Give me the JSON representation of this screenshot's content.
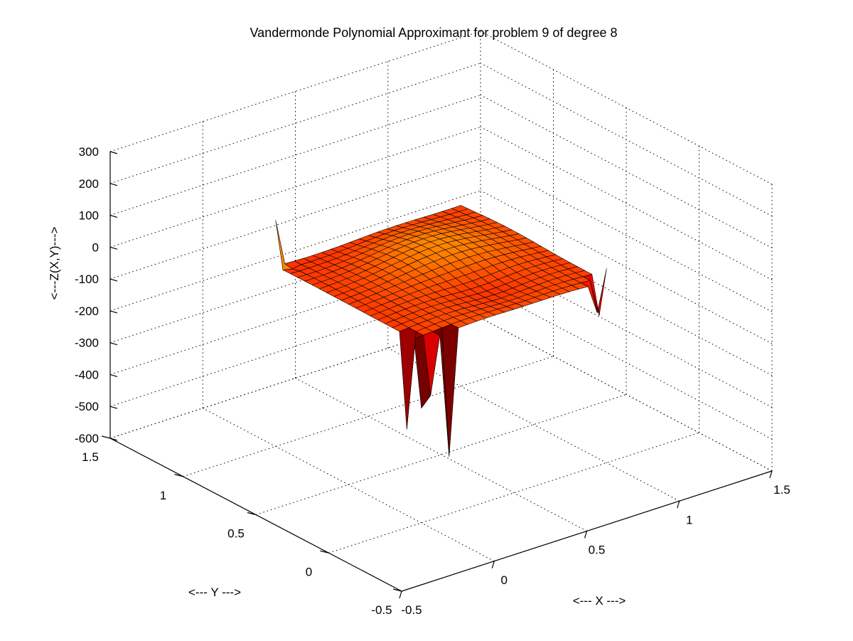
{
  "chart_data": {
    "type": "surface",
    "title": "Vandermonde Polynomial Approximant for problem 9 of degree 8",
    "xlabel": "<--- X --->",
    "ylabel": "<--- Y --->",
    "zlabel": "<---Z(X,Y)--->",
    "xlim": [
      -0.5,
      1.5
    ],
    "ylim": [
      -0.5,
      1.5
    ],
    "zlim": [
      -600,
      300
    ],
    "x_ticks": [
      "-0.5",
      "0",
      "0.5",
      "1",
      "1.5"
    ],
    "y_ticks": [
      "-0.5",
      "0",
      "0.5",
      "1",
      "1.5"
    ],
    "z_ticks": [
      "-600",
      "-500",
      "-400",
      "-300",
      "-200",
      "-100",
      "0",
      "100",
      "200",
      "300"
    ],
    "surface_x_range": [
      0,
      1
    ],
    "surface_y_range": [
      0,
      1
    ],
    "surface_grid_points": 21,
    "surface_z_range": [
      -420,
      120
    ],
    "colormap": "hot",
    "grid": true,
    "view": "3d-default"
  }
}
